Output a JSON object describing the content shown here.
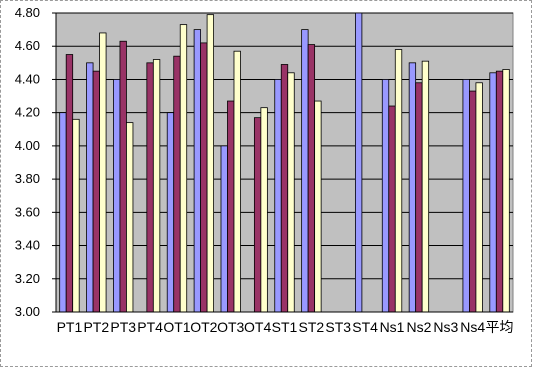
{
  "chart_data": {
    "type": "bar",
    "title": "",
    "xlabel": "",
    "ylabel": "",
    "ylim": [
      3.0,
      4.8
    ],
    "y_ticks": [
      "3.00",
      "3.20",
      "3.40",
      "3.60",
      "3.80",
      "4.00",
      "4.20",
      "4.40",
      "4.60",
      "4.80"
    ],
    "grid": true,
    "legend": "none",
    "categories": [
      "PT1",
      "PT2",
      "PT3",
      "PT4",
      "OT1",
      "OT2",
      "OT3",
      "OT4",
      "ST1",
      "ST2",
      "ST3",
      "ST4",
      "Ns1",
      "Ns2",
      "Ns3",
      "Ns4",
      "平均"
    ],
    "series": [
      {
        "color": "#9999ff",
        "values": [
          4.2,
          4.5,
          4.4,
          null,
          4.2,
          4.7,
          4.0,
          null,
          4.4,
          4.7,
          null,
          4.8,
          4.4,
          4.5,
          null,
          4.4,
          4.44
        ]
      },
      {
        "color": "#993366",
        "values": [
          4.55,
          4.45,
          4.63,
          4.5,
          4.54,
          4.62,
          4.27,
          4.17,
          4.49,
          4.61,
          null,
          null,
          4.24,
          4.38,
          null,
          4.33,
          4.45
        ]
      },
      {
        "color": "#ffffcc",
        "values": [
          4.16,
          4.68,
          4.14,
          4.52,
          4.73,
          4.79,
          4.57,
          4.23,
          4.44,
          4.27,
          null,
          null,
          4.58,
          4.51,
          null,
          4.38,
          4.46
        ]
      }
    ]
  }
}
